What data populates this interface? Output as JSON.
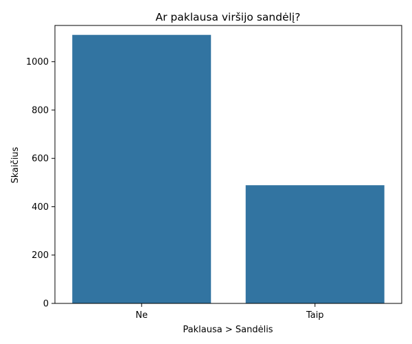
{
  "chart_data": {
    "type": "bar",
    "title": "Ar paklausa viršijo sandėlį?",
    "xlabel": "Paklausa > Sandėlis",
    "ylabel": "Skaičius",
    "categories": [
      "Ne",
      "Taip"
    ],
    "values": [
      1111,
      489
    ],
    "ylim": [
      0,
      1150
    ],
    "yticks": [
      0,
      200,
      400,
      600,
      800,
      1000
    ],
    "grid": false,
    "bar_color": "#3274a1"
  }
}
